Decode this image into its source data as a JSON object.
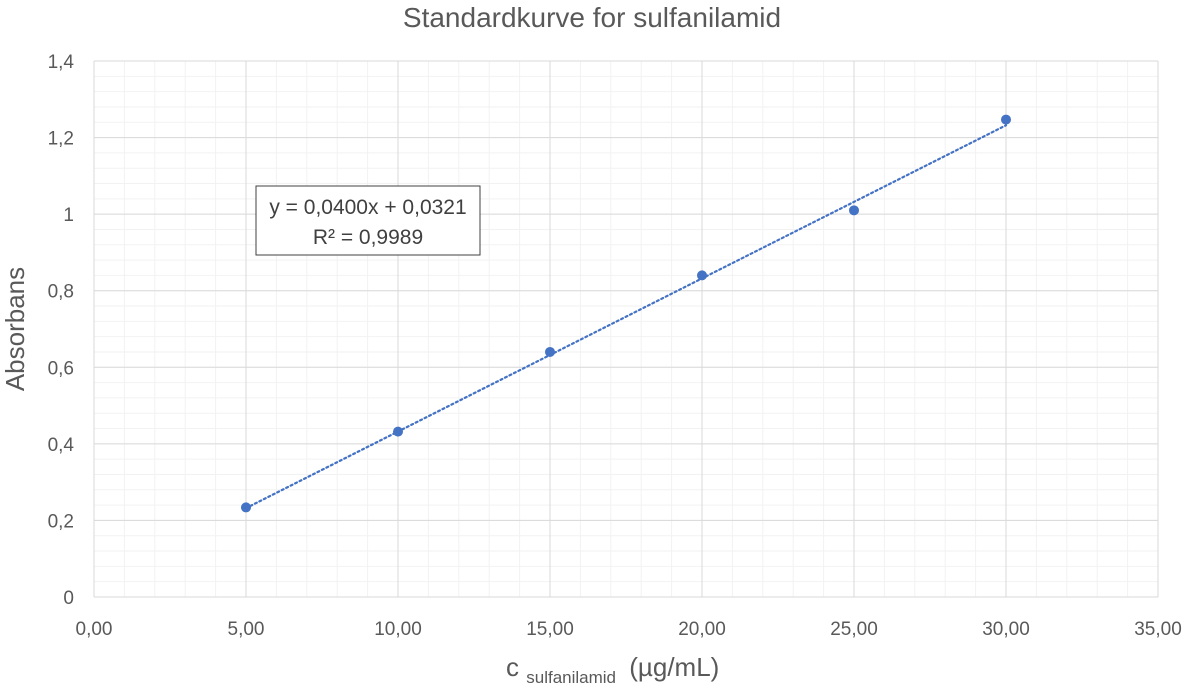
{
  "chart_data": {
    "type": "scatter",
    "title": "Standardkurve for sulfanilamid",
    "xlabel": {
      "main": "c",
      "subscript": "sulfanilamid",
      "unit": "(µg/mL)"
    },
    "ylabel": "Absorbans",
    "xlim": [
      0,
      35
    ],
    "ylim": [
      0,
      1.4
    ],
    "x_major_step": 5,
    "x_minor_step": 1,
    "y_major_step": 0.2,
    "y_minor_step": 0.04,
    "x_tick_labels": [
      "0,00",
      "5,00",
      "10,00",
      "15,00",
      "20,00",
      "25,00",
      "30,00",
      "35,00"
    ],
    "y_tick_labels": [
      "0",
      "0,2",
      "0,4",
      "0,6",
      "0,8",
      "1",
      "1,2",
      "1,4"
    ],
    "grid": true,
    "legend": "none",
    "series": [
      {
        "x": [
          5,
          10,
          15,
          20,
          25,
          30
        ],
        "y": [
          0.234,
          0.432,
          0.64,
          0.84,
          1.01,
          1.247
        ],
        "color": "#4472C4"
      }
    ],
    "trendline": {
      "type": "linear",
      "slope": 0.04,
      "intercept": 0.0321,
      "x_range": [
        5,
        30
      ],
      "style": "dotted",
      "color": "#4472C4",
      "equation": "y = 0,0400x + 0,0321",
      "r_squared": "R² = 0,9989"
    },
    "colors": {
      "marker": "#4472C4",
      "major_grid": "#D9D9D9",
      "minor_grid": "#F2F2F2",
      "text": "#595959"
    }
  }
}
